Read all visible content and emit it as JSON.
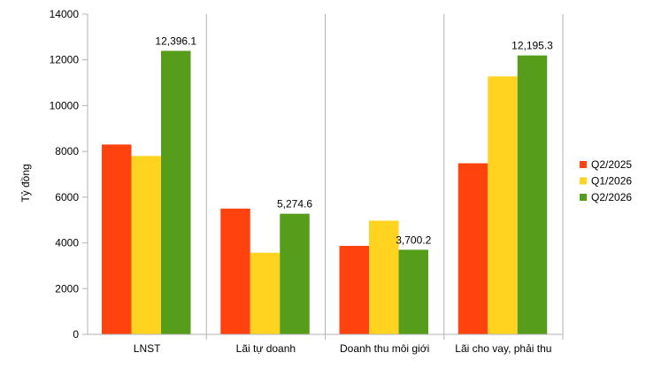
{
  "chart_data": {
    "type": "bar",
    "title": "",
    "xlabel": "",
    "ylabel": "Tỷ đồng",
    "ylim": [
      0,
      14000
    ],
    "yticks": [
      0,
      2000,
      4000,
      6000,
      8000,
      10000,
      12000,
      14000
    ],
    "categories": [
      "LNST",
      "Lãi tự doanh",
      "Doanh thu môi giới",
      "Lãi cho vay, phải thu"
    ],
    "series": [
      {
        "name": "Q2/2025",
        "color": "#FF420E",
        "values": [
          8300,
          5500,
          3870,
          7480
        ]
      },
      {
        "name": "Q1/2026",
        "color": "#FFD320",
        "values": [
          7800,
          3570,
          4970,
          11280
        ]
      },
      {
        "name": "Q2/2026",
        "color": "#579D1C",
        "values": [
          12396.1,
          5274.6,
          3700.2,
          12195.3
        ]
      }
    ],
    "data_labels": {
      "series": "Q2/2026",
      "texts": [
        "12,396.1",
        "5,274.6",
        "3,700.2",
        "12,195.3"
      ]
    },
    "legend": {
      "position": "right"
    },
    "grid": {
      "vertical_separators": true,
      "horizontal": false
    }
  }
}
